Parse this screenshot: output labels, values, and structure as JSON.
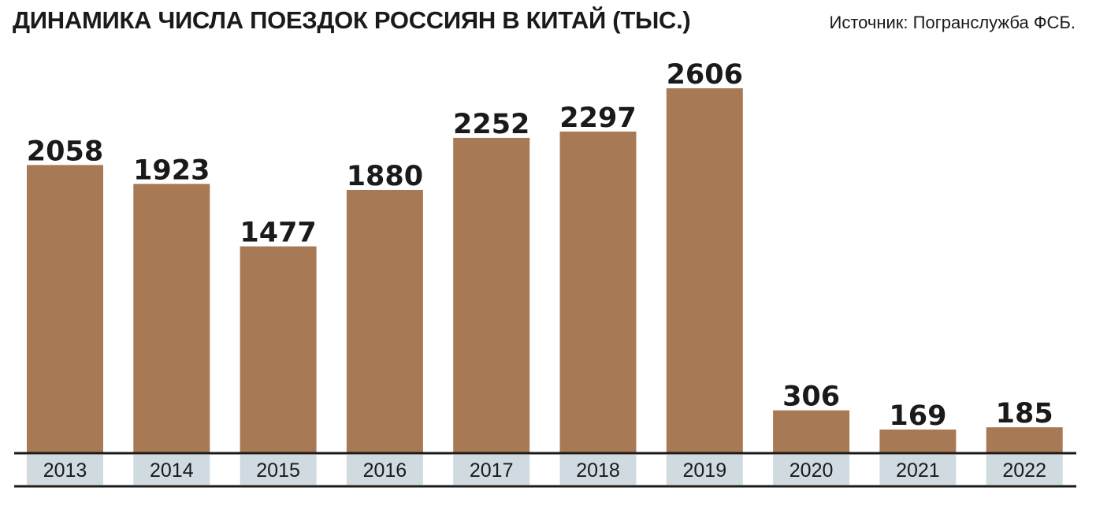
{
  "header": {
    "title": "ДИНАМИКА ЧИСЛА ПОЕЗДОК РОССИЯН В КИТАЙ (ТЫС.)",
    "source": "Источник: Погранслужба ФСБ."
  },
  "colors": {
    "bar": "#a87955",
    "label_band": "#cfdbe0",
    "axis": "#1a1a1a"
  },
  "chart_data": {
    "type": "bar",
    "title": "ДИНАМИКА ЧИСЛА ПОЕЗДОК РОССИЯН В КИТАЙ (ТЫС.)",
    "categories": [
      "2013",
      "2014",
      "2015",
      "2016",
      "2017",
      "2018",
      "2019",
      "2020",
      "2021",
      "2022"
    ],
    "values": [
      2058,
      1923,
      1477,
      1880,
      2252,
      2297,
      2606,
      306,
      169,
      185
    ],
    "xlabel": "",
    "ylabel": "",
    "ylim": [
      0,
      2606
    ],
    "grid": false,
    "legend": "none"
  }
}
